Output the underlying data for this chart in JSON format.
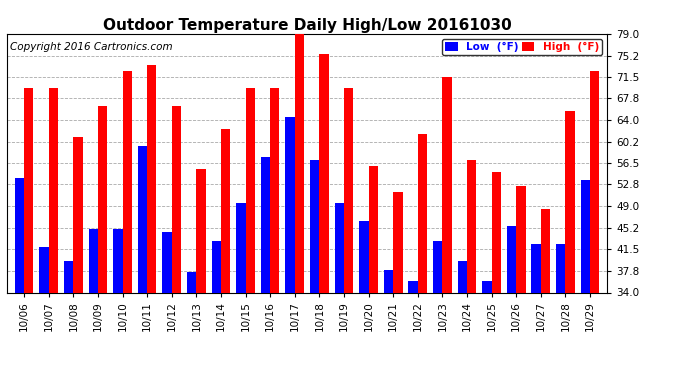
{
  "title": "Outdoor Temperature Daily High/Low 20161030",
  "copyright": "Copyright 2016 Cartronics.com",
  "categories": [
    "10/06",
    "10/07",
    "10/08",
    "10/09",
    "10/10",
    "10/11",
    "10/12",
    "10/13",
    "10/14",
    "10/15",
    "10/16",
    "10/17",
    "10/18",
    "10/19",
    "10/20",
    "10/21",
    "10/22",
    "10/23",
    "10/24",
    "10/25",
    "10/26",
    "10/27",
    "10/28",
    "10/29"
  ],
  "high": [
    69.5,
    69.5,
    61.0,
    66.5,
    72.5,
    73.5,
    66.5,
    55.5,
    62.5,
    69.5,
    69.5,
    79.5,
    75.5,
    69.5,
    56.0,
    51.5,
    61.5,
    71.5,
    57.0,
    55.0,
    52.5,
    48.5,
    65.5,
    72.5
  ],
  "low": [
    54.0,
    42.0,
    39.5,
    45.0,
    45.0,
    59.5,
    44.5,
    37.5,
    43.0,
    49.5,
    57.5,
    64.5,
    57.0,
    49.5,
    46.5,
    38.0,
    36.0,
    43.0,
    39.5,
    36.0,
    45.5,
    42.5,
    42.5,
    53.5
  ],
  "ylim_min": 34.0,
  "ylim_max": 79.0,
  "yticks": [
    34.0,
    37.8,
    41.5,
    45.2,
    49.0,
    52.8,
    56.5,
    60.2,
    64.0,
    67.8,
    71.5,
    75.2,
    79.0
  ],
  "high_color": "#ff0000",
  "low_color": "#0000ff",
  "background_color": "#ffffff",
  "grid_color": "#aaaaaa",
  "title_fontsize": 11,
  "copyright_fontsize": 7.5,
  "bar_width": 0.38,
  "legend_low_label": "Low  (°F)",
  "legend_high_label": "High  (°F)"
}
